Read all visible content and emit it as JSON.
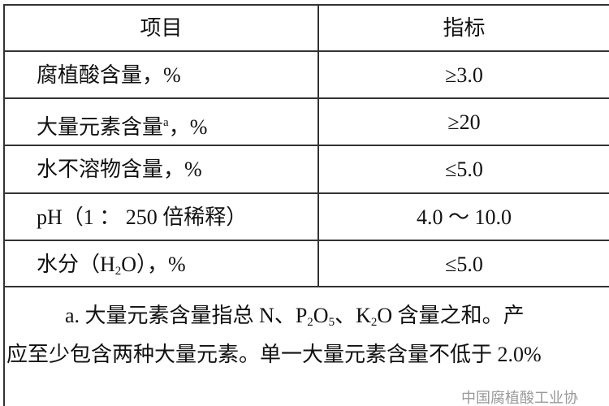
{
  "table": {
    "header": [
      "项目",
      "指标"
    ],
    "rows": [
      [
        [
          "腐植酸含量，%"
        ],
        "≥3.0"
      ],
      [
        [
          "大量元素含量",
          "a",
          "，%"
        ],
        "≥20"
      ],
      [
        [
          "水不溶物含量，%"
        ],
        "≤5.0"
      ],
      [
        [
          "pH（1 ： 250 倍稀释）"
        ],
        "4.0 ～ 10.0"
      ],
      [
        [
          "水分（H",
          "2",
          "O），%"
        ],
        "≤5.0"
      ]
    ],
    "footnote": [
      [
        "a. 大量元素含量指总 N、P",
        "2",
        "O",
        "5",
        "、K",
        "2",
        "O 含量之和。产"
      ],
      [
        "应至少包含两种大量元素。单一大量元素含量不低于 2.0%"
      ]
    ]
  },
  "watermark": "中国腐植酸工业协"
}
